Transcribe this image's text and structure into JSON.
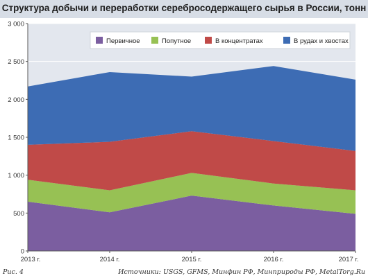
{
  "title": "Структура добычи и переработки серебросодержащего сырья в России, тонн",
  "figure_label": "Рис. 4",
  "source": "Источники: USGS, GFMS, Минфин РФ, Минприроды РФ, MetalTorg.Ru",
  "colors": {
    "plot_bg": "#e3e7ee",
    "title_bg": "#d7dde6",
    "gridline": "#ffffff",
    "axis": "#555555"
  },
  "chart_data": {
    "type": "area",
    "stacked": true,
    "title": "Структура добычи и переработки серебросодержащего сырья в России, тонн",
    "x": [
      "2013 г.",
      "2014 г.",
      "2015 г.",
      "2016 г.",
      "2017 г."
    ],
    "ylim": [
      0,
      3000
    ],
    "yticks": [
      0,
      500,
      1000,
      1500,
      2000,
      2500,
      3000
    ],
    "ytick_labels": [
      "0",
      "500",
      "1 000",
      "1 500",
      "2 000",
      "2 500",
      "3 000"
    ],
    "grid": true,
    "legend_position": "top-right",
    "series": [
      {
        "name": "Первичное",
        "color": "#7b5ea0",
        "values": [
          650,
          510,
          730,
          600,
          490
        ]
      },
      {
        "name": "Попутное",
        "color": "#97c154",
        "values": [
          290,
          290,
          300,
          290,
          310
        ]
      },
      {
        "name": "В концентратах",
        "color": "#c04a48",
        "values": [
          460,
          640,
          550,
          560,
          520
        ]
      },
      {
        "name": "В рудах и хвостах",
        "color": "#3d6cb4",
        "values": [
          770,
          920,
          720,
          990,
          940
        ]
      }
    ]
  }
}
